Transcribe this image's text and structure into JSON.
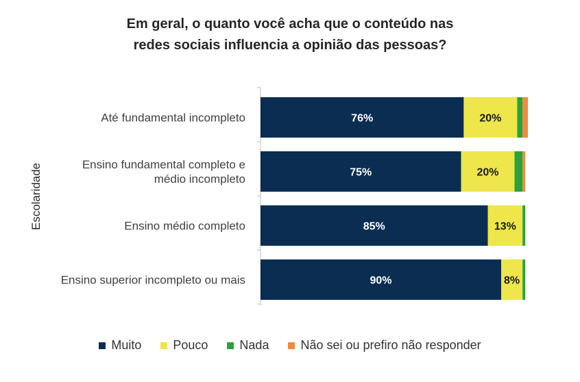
{
  "chart_data": {
    "type": "bar",
    "orientation": "horizontal",
    "stacked": true,
    "title_lines": [
      "Em geral, o quanto você acha que o conteúdo nas",
      "redes sociais influencia a opinião das pessoas?"
    ],
    "ylabel": "Escolaridade",
    "categories": [
      [
        "Até fundamental incompleto"
      ],
      [
        "Ensino fundamental completo e",
        "médio incompleto"
      ],
      [
        "Ensino médio completo"
      ],
      [
        "Ensino superior incompleto ou mais"
      ]
    ],
    "series": [
      {
        "name": "Muito",
        "color": "#0b2d52",
        "values": [
          76,
          75,
          85,
          90
        ],
        "labels": [
          "76%",
          "75%",
          "85%",
          "90%"
        ],
        "label_color": "#ffffff"
      },
      {
        "name": "Pouco",
        "color": "#eee64a",
        "values": [
          20,
          20,
          13,
          8
        ],
        "labels": [
          "20%",
          "20%",
          "13%",
          "8%"
        ],
        "label_color": "#1a1a1a"
      },
      {
        "name": "Nada",
        "color": "#29a33a",
        "values": [
          2,
          3,
          1,
          1
        ],
        "labels": [
          "",
          "",
          "",
          ""
        ]
      },
      {
        "name": "Não sei ou prefiro não responder",
        "color": "#f08a3e",
        "values": [
          2,
          1,
          0,
          0
        ],
        "labels": [
          "",
          "",
          "",
          ""
        ]
      }
    ],
    "xlim": [
      0,
      100
    ],
    "legend_position": "bottom",
    "grid": false
  }
}
